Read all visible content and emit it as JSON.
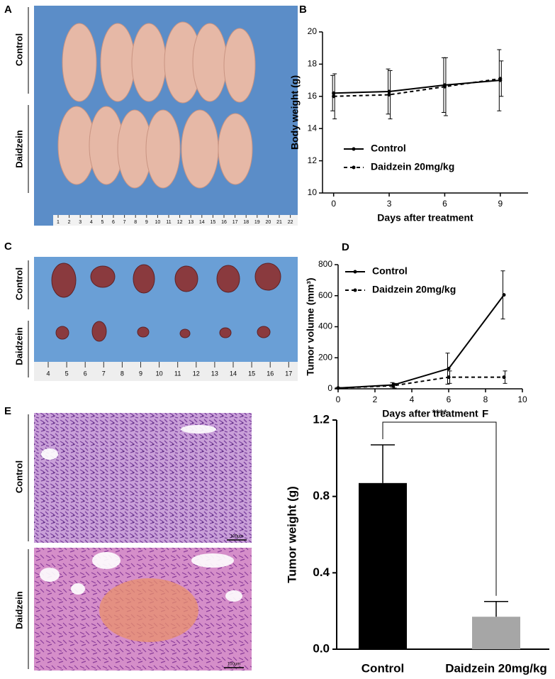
{
  "photos": [
    {
      "panel": "A",
      "labels": [
        "Control",
        "Daidzein"
      ],
      "ruler": [
        1,
        2,
        3,
        4,
        5,
        6,
        7,
        8,
        9,
        10,
        11,
        12,
        13,
        14,
        15,
        16,
        17,
        18,
        19,
        20,
        21,
        22
      ]
    },
    {
      "panel": "C",
      "labels": [
        "Control",
        "Daidzein"
      ],
      "ruler": [
        4,
        5,
        6,
        7,
        8,
        9,
        10,
        11,
        12,
        13,
        14,
        15,
        16,
        17
      ]
    },
    {
      "panel": "E",
      "labels": [
        "Control",
        "Daidzein"
      ],
      "scale_bars": [
        "100μm",
        "100μm"
      ]
    }
  ],
  "chart_data": [
    {
      "type": "line",
      "panel": "B",
      "xlabel": "Days after treatment",
      "ylabel": "Body weight (g)",
      "x": [
        0,
        3,
        6,
        9
      ],
      "xlim": [
        -0.6,
        10.5
      ],
      "xticks": [
        0,
        3,
        6,
        9
      ],
      "ylim": [
        10,
        20
      ],
      "yticks": [
        10,
        12,
        14,
        16,
        18,
        20
      ],
      "legend": "lower left",
      "series": [
        {
          "name": "Control",
          "color": "#000000",
          "style": "solid",
          "values": [
            16.2,
            16.3,
            16.7,
            17.0
          ],
          "errors": [
            1.1,
            1.4,
            1.7,
            1.9
          ]
        },
        {
          "name": "Daidzein 20mg/kg",
          "color": "#000000",
          "style": "dashed",
          "values": [
            16.0,
            16.1,
            16.6,
            17.1
          ],
          "errors": [
            1.4,
            1.5,
            1.8,
            1.1
          ]
        }
      ]
    },
    {
      "type": "line",
      "panel": "D",
      "xlabel": "Days after treatment",
      "ylabel": "Tumor volume (mm³)",
      "x": [
        0,
        3,
        6,
        9
      ],
      "xlim": [
        0,
        10
      ],
      "xticks": [
        0,
        2,
        4,
        6,
        8,
        10
      ],
      "ylim": [
        0,
        800
      ],
      "yticks": [
        0,
        200,
        400,
        600,
        800
      ],
      "legend": "upper left",
      "series": [
        {
          "name": "Control",
          "color": "#000000",
          "style": "solid",
          "values": [
            5,
            25,
            130,
            605
          ],
          "errors": [
            3,
            15,
            100,
            155
          ]
        },
        {
          "name": "Daidzein 20mg/kg",
          "color": "#000000",
          "style": "dashed",
          "values": [
            5,
            20,
            75,
            75
          ],
          "errors": [
            3,
            15,
            40,
            40
          ]
        }
      ]
    },
    {
      "type": "bar",
      "panel": "F",
      "ylabel": "Tumor weight (g)",
      "categories": [
        "Control",
        "Daidzein 20mg/kg"
      ],
      "values": [
        0.87,
        0.17
      ],
      "errors": [
        0.2,
        0.08
      ],
      "colors": [
        "#000000",
        "#a6a6a6"
      ],
      "ylim": [
        0,
        1.2
      ],
      "yticks": [
        {
          "value": 0,
          "label": "0.0"
        },
        0.4,
        0.8,
        1.2
      ],
      "annotation": "****"
    }
  ]
}
